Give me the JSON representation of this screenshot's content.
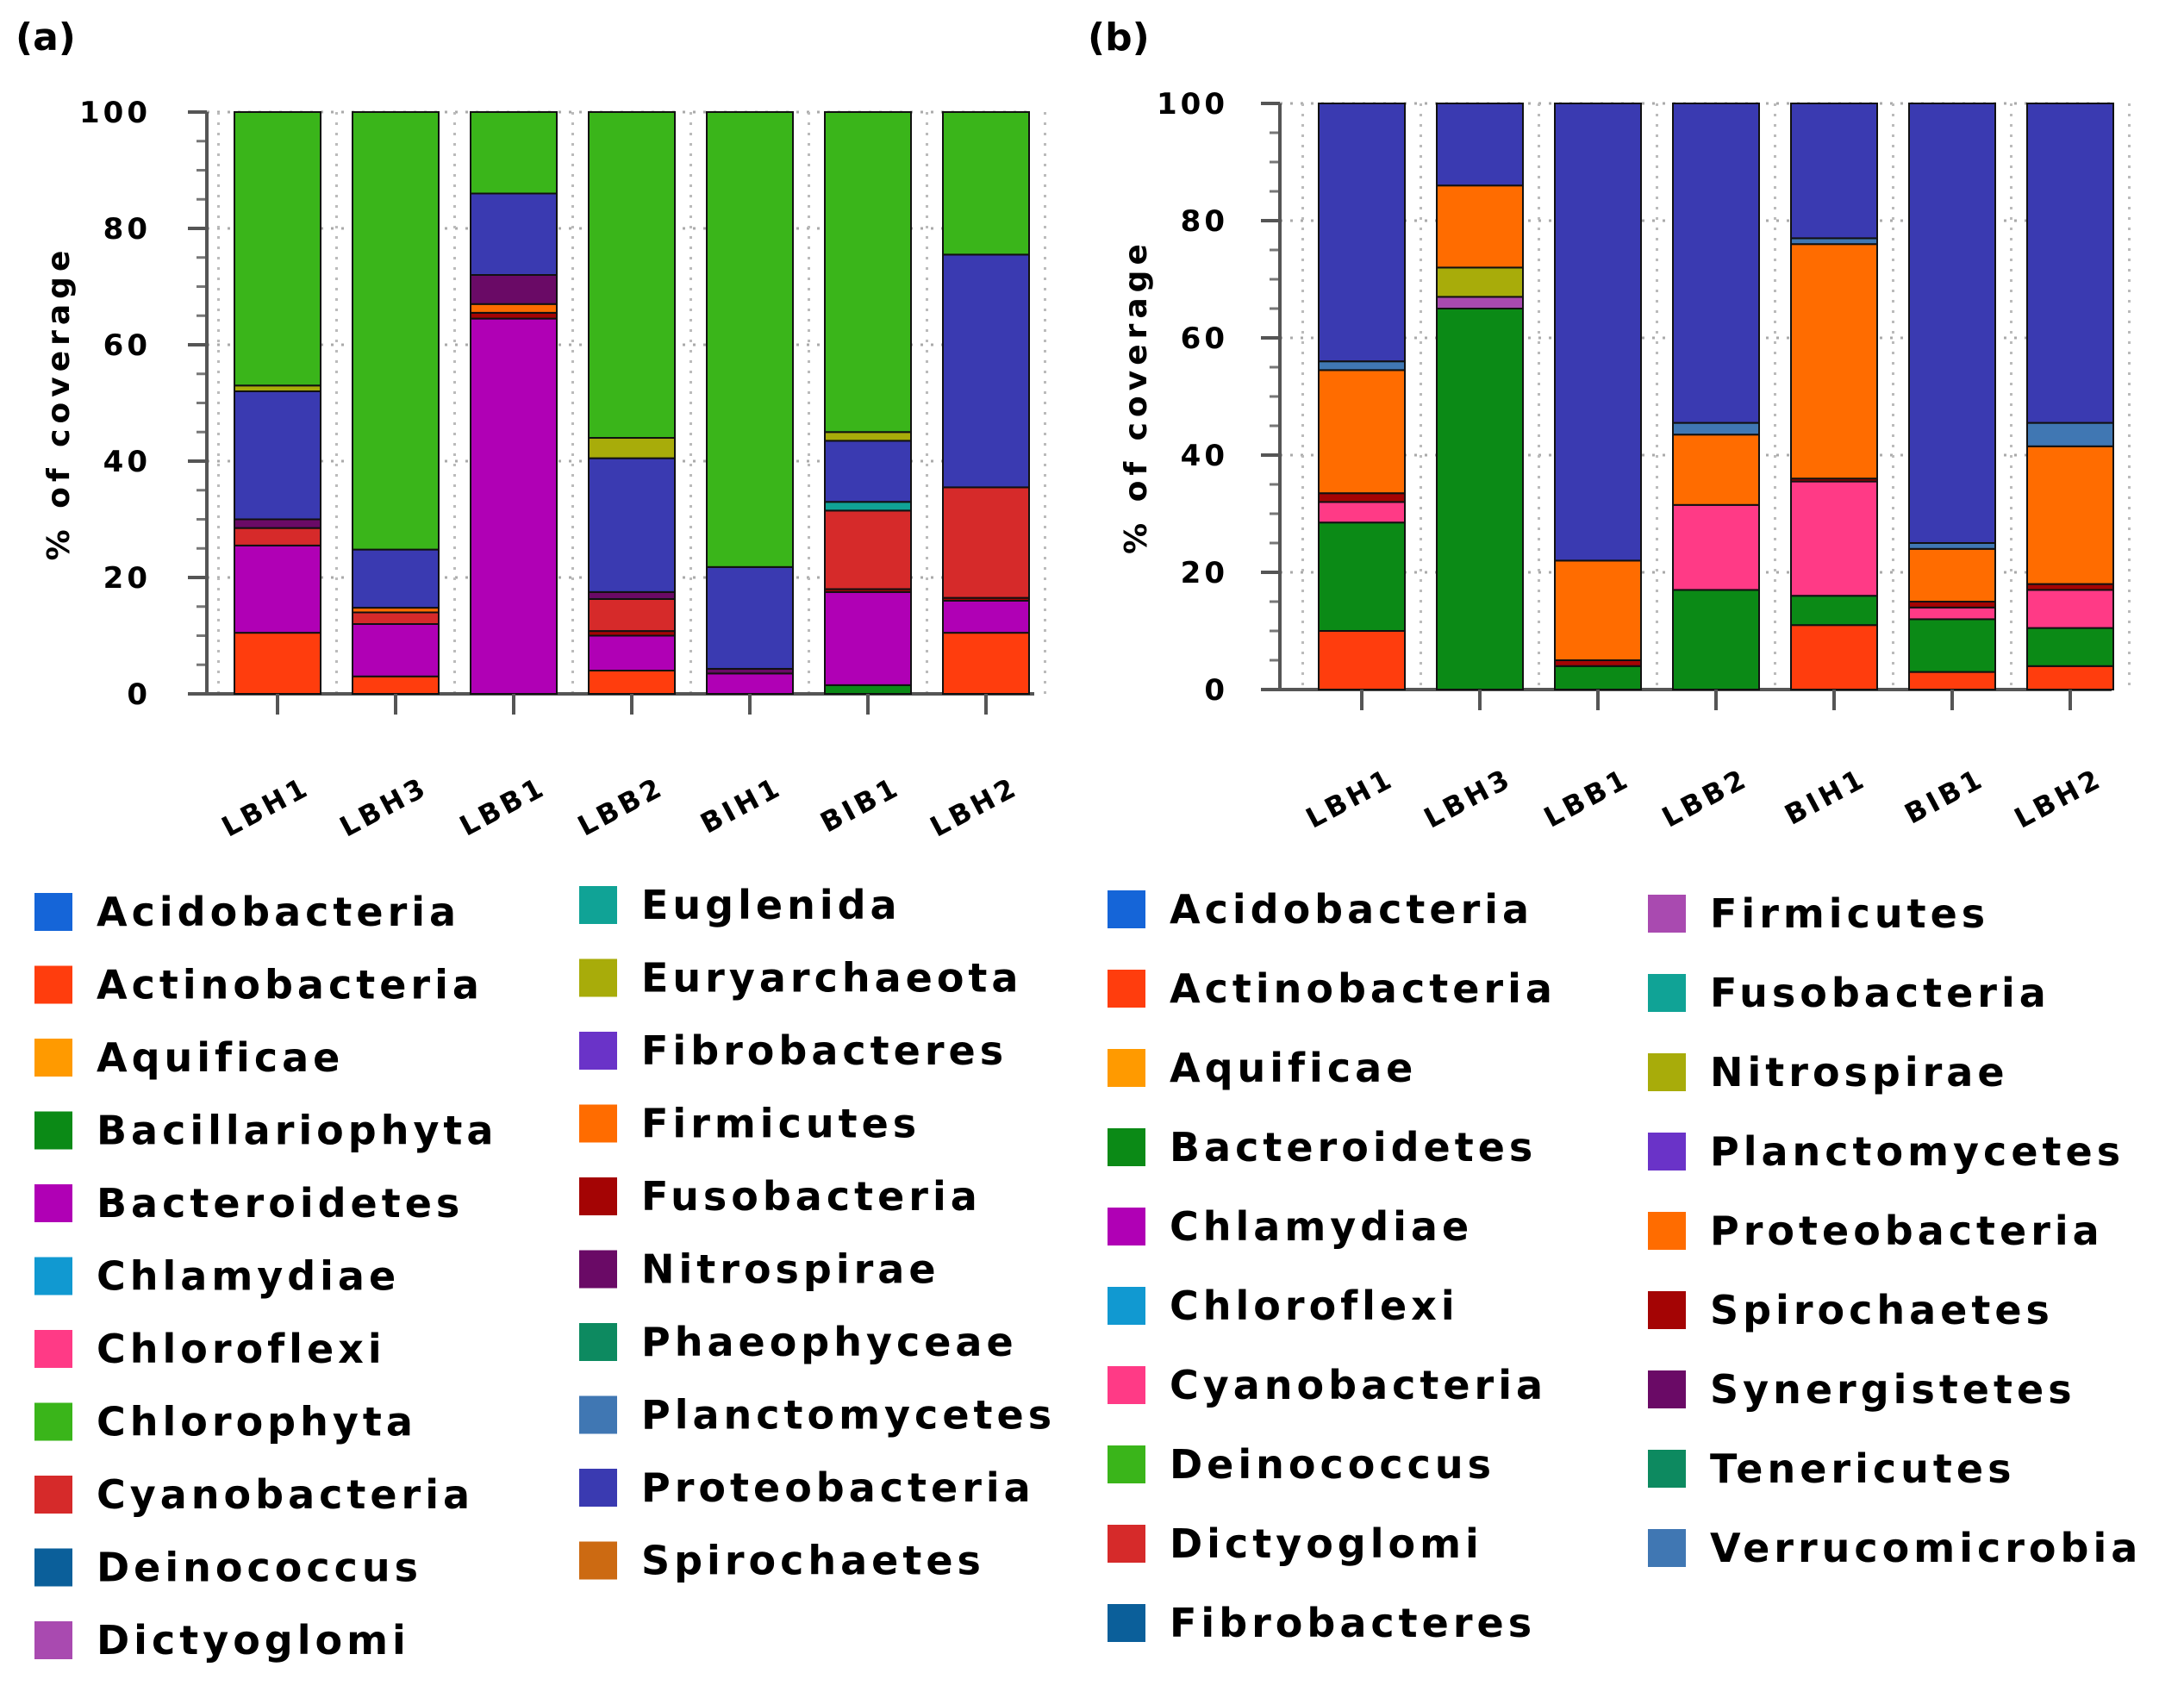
{
  "chart_data": [
    {
      "type": "bar",
      "stacked": true,
      "panel_label": "(a)",
      "ylabel": "% of coverage",
      "ylim": [
        0,
        100
      ],
      "yticks": [
        0,
        20,
        40,
        60,
        80,
        100
      ],
      "grid": "dotted horizontal",
      "categories": [
        "LBH1",
        "LBH3",
        "LBB1",
        "LBB2",
        "BIH1",
        "BIB1",
        "LBH2"
      ],
      "legend": [
        {
          "name": "Acidobacteria",
          "color": "#1565d8"
        },
        {
          "name": "Actinobacteria",
          "color": "#ff3d0d"
        },
        {
          "name": "Aquificae",
          "color": "#ff9a00"
        },
        {
          "name": "Bacillariophyta",
          "color": "#0b8a16"
        },
        {
          "name": "Bacteroidetes",
          "color": "#b000b5"
        },
        {
          "name": "Chlamydiae",
          "color": "#1199d1"
        },
        {
          "name": "Chloroflexi",
          "color": "#ff3a86"
        },
        {
          "name": "Chlorophyta",
          "color": "#3ab51a"
        },
        {
          "name": "Cyanobacteria",
          "color": "#d62a2a"
        },
        {
          "name": "Deinococcus",
          "color": "#0b5f9a"
        },
        {
          "name": "Dictyoglomi",
          "color": "#a94ab0"
        },
        {
          "name": "Euglenida",
          "color": "#10a396"
        },
        {
          "name": "Euryarchaeota",
          "color": "#a8ac0a"
        },
        {
          "name": "Fibrobacteres",
          "color": "#6a33c8"
        },
        {
          "name": "Firmicutes",
          "color": "#ff6c00"
        },
        {
          "name": "Fusobacteria",
          "color": "#a40404"
        },
        {
          "name": "Nitrospirae",
          "color": "#6a0a66"
        },
        {
          "name": "Phaeophyceae",
          "color": "#0d8a60"
        },
        {
          "name": "Planctomycetes",
          "color": "#4077b3"
        },
        {
          "name": "Proteobacteria",
          "color": "#3a3ab1"
        },
        {
          "name": "Spirochaetes",
          "color": "#cc6a12"
        }
      ],
      "series": [
        {
          "name": "Actinobacteria",
          "values": [
            10.5,
            3,
            0,
            4,
            0,
            0,
            10.5
          ]
        },
        {
          "name": "Bacillariophyta",
          "values": [
            0,
            0,
            0,
            0,
            0,
            1.5,
            0
          ]
        },
        {
          "name": "Bacteroidetes",
          "values": [
            15,
            9,
            64.5,
            6,
            3.5,
            16,
            5.5
          ]
        },
        {
          "name": "Fusobacteria",
          "values": [
            0,
            0,
            1,
            0.8,
            0,
            0.5,
            0.5
          ]
        },
        {
          "name": "Cyanobacteria",
          "values": [
            3,
            2,
            0,
            5.5,
            0,
            13.5,
            19
          ]
        },
        {
          "name": "Firmicutes",
          "values": [
            0,
            0.8,
            1.5,
            0,
            0,
            0,
            0
          ]
        },
        {
          "name": "Nitrospirae",
          "values": [
            1.5,
            0,
            5,
            1.2,
            0.8,
            0,
            0
          ]
        },
        {
          "name": "Euglenida",
          "values": [
            0,
            0,
            0,
            0,
            0,
            1.5,
            0
          ]
        },
        {
          "name": "Proteobacteria",
          "values": [
            22,
            10,
            14,
            23,
            17.5,
            10.5,
            40
          ]
        },
        {
          "name": "Euryarchaeota",
          "values": [
            1,
            0,
            0,
            3.5,
            0,
            1.5,
            0
          ]
        },
        {
          "name": "Chlorophyta",
          "values": [
            47,
            75.2,
            14,
            56,
            78.2,
            55,
            24.5
          ]
        }
      ]
    },
    {
      "type": "bar",
      "stacked": true,
      "panel_label": "(b)",
      "ylabel": "% of coverage",
      "ylim": [
        0,
        100
      ],
      "yticks": [
        0,
        20,
        40,
        60,
        80,
        100
      ],
      "grid": "dotted horizontal",
      "categories": [
        "LBH1",
        "LBH3",
        "LBB1",
        "LBB2",
        "BIH1",
        "BIB1",
        "LBH2"
      ],
      "legend": [
        {
          "name": "Acidobacteria",
          "color": "#1565d8"
        },
        {
          "name": "Actinobacteria",
          "color": "#ff3d0d"
        },
        {
          "name": "Aquificae",
          "color": "#ff9a00"
        },
        {
          "name": "Bacteroidetes",
          "color": "#0b8a16"
        },
        {
          "name": "Chlamydiae",
          "color": "#b000b5"
        },
        {
          "name": "Chloroflexi",
          "color": "#1199d1"
        },
        {
          "name": "Cyanobacteria",
          "color": "#ff3a86"
        },
        {
          "name": "Deinococcus",
          "color": "#3ab51a"
        },
        {
          "name": "Dictyoglomi",
          "color": "#d62a2a"
        },
        {
          "name": "Fibrobacteres",
          "color": "#0b5f9a"
        },
        {
          "name": "Firmicutes",
          "color": "#a94ab0"
        },
        {
          "name": "Fusobacteria",
          "color": "#10a396"
        },
        {
          "name": "Nitrospirae",
          "color": "#a8ac0a"
        },
        {
          "name": "Planctomycetes",
          "color": "#6a33c8"
        },
        {
          "name": "Proteobacteria",
          "color": "#ff6c00"
        },
        {
          "name": "Spirochaetes",
          "color": "#a40404"
        },
        {
          "name": "Synergistetes",
          "color": "#6a0a66"
        },
        {
          "name": "Tenericutes",
          "color": "#0d8a60"
        },
        {
          "name": "Verrucomicrobia",
          "color": "#4077b3"
        }
      ],
      "series": [
        {
          "name": "Actinobacteria",
          "values": [
            10,
            0,
            0,
            0,
            11,
            3,
            4
          ]
        },
        {
          "name": "Bacteroidetes",
          "values": [
            18.5,
            65,
            4,
            17,
            5,
            9,
            6.5
          ]
        },
        {
          "name": "Cyanobacteria",
          "values": [
            3.5,
            0,
            0,
            14.5,
            19.5,
            2,
            6.5
          ]
        },
        {
          "name": "Spirochaetes",
          "values": [
            1.5,
            0,
            1,
            0,
            0.5,
            1,
            1
          ]
        },
        {
          "name": "Firmicutes",
          "values": [
            0,
            2,
            0,
            0,
            0,
            0,
            0
          ]
        },
        {
          "name": "Nitrospirae",
          "values": [
            0,
            5,
            0,
            0,
            0,
            0,
            0
          ]
        },
        {
          "name": "Proteobacteria",
          "values": [
            21,
            14,
            17,
            12,
            40,
            9,
            23.5
          ]
        },
        {
          "name": "Verrucomicrobia",
          "values": [
            1.5,
            0,
            0,
            2,
            1,
            1,
            4
          ]
        },
        {
          "name": "Acidobacteria",
          "values": [
            0,
            0,
            0,
            0,
            0,
            0,
            0
          ]
        },
        {
          "name": "Proteobacteria",
          "values": [
            44,
            14,
            78,
            54.5,
            23,
            75,
            54.5
          ]
        }
      ],
      "series_colors_note": ""
    }
  ]
}
